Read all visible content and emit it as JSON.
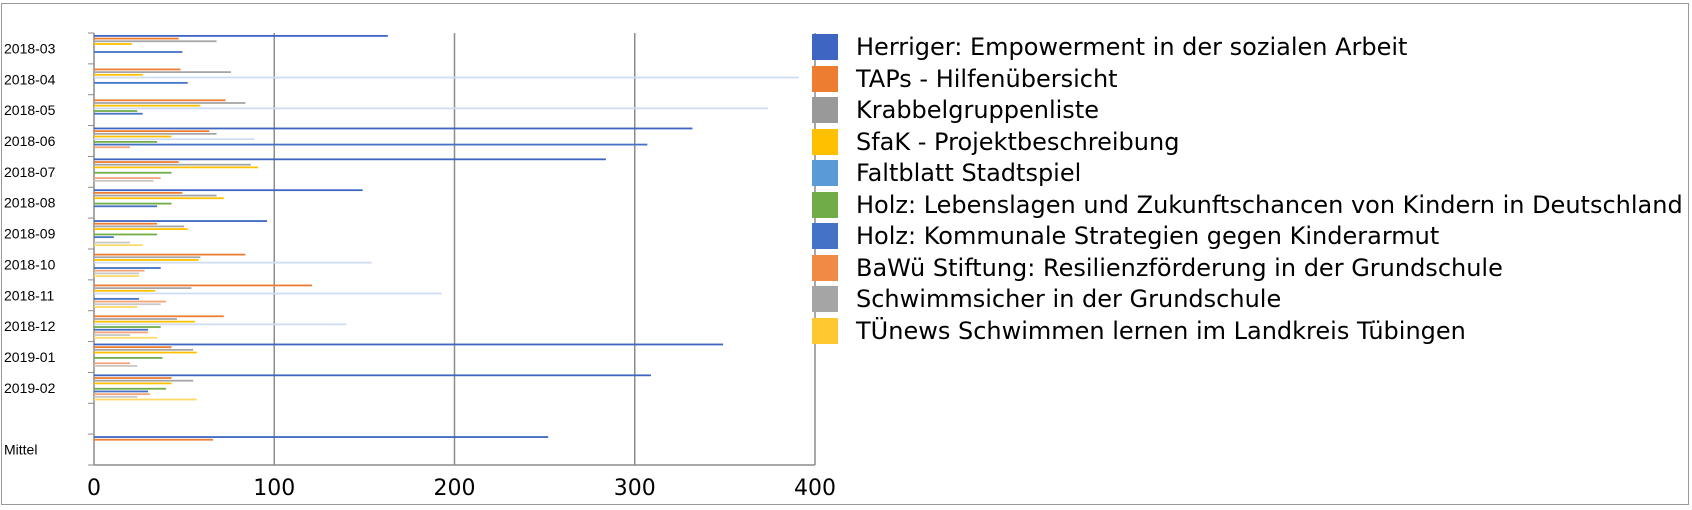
{
  "chart_data": {
    "type": "bar",
    "orientation": "horizontal",
    "title": "",
    "xlabel": "",
    "ylabel": "",
    "xlim": [
      0,
      400
    ],
    "xticks": [
      "0",
      "100",
      "200",
      "300",
      "400"
    ],
    "grid": "vertical",
    "legend_position": "right",
    "categories": [
      "2018-03",
      "2018-04",
      "2018-05",
      "2018-06",
      "2018-07",
      "2018-08",
      "2018-09",
      "2018-10",
      "2018-11",
      "2018-12",
      "2019-01",
      "2019-02",
      "",
      "Mittel"
    ],
    "series": [
      {
        "name": "Herriger: Empowerment in der sozialen Arbeit",
        "color": "#3d65c1",
        "values": [
          163,
          0,
          0,
          332,
          284,
          149,
          96,
          0,
          0,
          0,
          349,
          309,
          null,
          252
        ]
      },
      {
        "name": "TAPs - Hilfenübersicht",
        "color": "#ed7d31",
        "values": [
          47,
          48,
          73,
          64,
          47,
          49,
          35,
          84,
          121,
          72,
          43,
          43,
          null,
          66
        ]
      },
      {
        "name": "Krabbelgruppenliste",
        "color": "#a5a5a5",
        "values": [
          68,
          76,
          84,
          68,
          87,
          68,
          50,
          59,
          54,
          46,
          55,
          55,
          null,
          null
        ]
      },
      {
        "name": "SfaK - Projektbeschreibung",
        "color": "#ffc000",
        "values": [
          21,
          27,
          59,
          43,
          91,
          72,
          52,
          58,
          34,
          56,
          57,
          43,
          null,
          null
        ]
      },
      {
        "name": "Faltblatt Stadtspiel",
        "color": "#cfdcf2",
        "values": [
          0,
          391,
          374,
          89,
          0,
          0,
          0,
          154,
          193,
          140,
          0,
          0,
          null,
          null
        ]
      },
      {
        "name": "Holz: Lebenslagen und Zukunftschancen von Kindern in Deutschland",
        "color": "#70ad47",
        "values": [
          0,
          0,
          24,
          35,
          43,
          43,
          35,
          0,
          0,
          37,
          38,
          40,
          null,
          null
        ]
      },
      {
        "name": "Holz: Kommunale Strategien gegen Kinderarmut",
        "color": "#4472c4",
        "values": [
          49,
          52,
          27,
          307,
          0,
          35,
          11,
          37,
          25,
          30,
          0,
          30,
          null,
          null
        ]
      },
      {
        "name": "BaWü Stiftung: Resilienzförderung in der Grundschule",
        "color": "#f4a67a",
        "values": [
          0,
          0,
          0,
          20,
          37,
          0,
          0,
          28,
          40,
          30,
          20,
          31,
          null,
          null
        ]
      },
      {
        "name": "Schwimmsicher in der Grundschule",
        "color": "#c7c7c7",
        "values": [
          0,
          0,
          0,
          0,
          33,
          0,
          20,
          25,
          37,
          20,
          24,
          24,
          null,
          null
        ]
      },
      {
        "name": "TÜnews Schwimmen lernen im Landkreis Tübingen",
        "color": "#ffd966",
        "values": [
          0,
          0,
          0,
          0,
          0,
          0,
          27,
          25,
          24,
          35,
          0,
          57,
          null,
          null
        ]
      }
    ]
  },
  "legend": {
    "items": [
      {
        "label": "Herriger: Empowerment in der sozialen Arbeit",
        "color": "#3d65c1"
      },
      {
        "label": "TAPs - Hilfenübersicht",
        "color": "#ed7d31"
      },
      {
        "label": "Krabbelgruppenliste",
        "color": "#999999"
      },
      {
        "label": "SfaK - Projektbeschreibung",
        "color": "#ffc000"
      },
      {
        "label": "Faltblatt Stadtspiel",
        "color": "#5b9bd5"
      },
      {
        "label": "Holz: Lebenslagen und Zukunftschancen von Kindern in Deutschland",
        "color": "#70ad47"
      },
      {
        "label": "Holz: Kommunale Strategien gegen Kinderarmut",
        "color": "#4472c4"
      },
      {
        "label": "BaWü Stiftung: Resilienzförderung in der Grundschule",
        "color": "#f08a44"
      },
      {
        "label": "Schwimmsicher in der Grundschule",
        "color": "#a5a5a5"
      },
      {
        "label": "TÜnews Schwimmen lernen im Landkreis Tübingen",
        "color": "#ffc830"
      }
    ]
  }
}
